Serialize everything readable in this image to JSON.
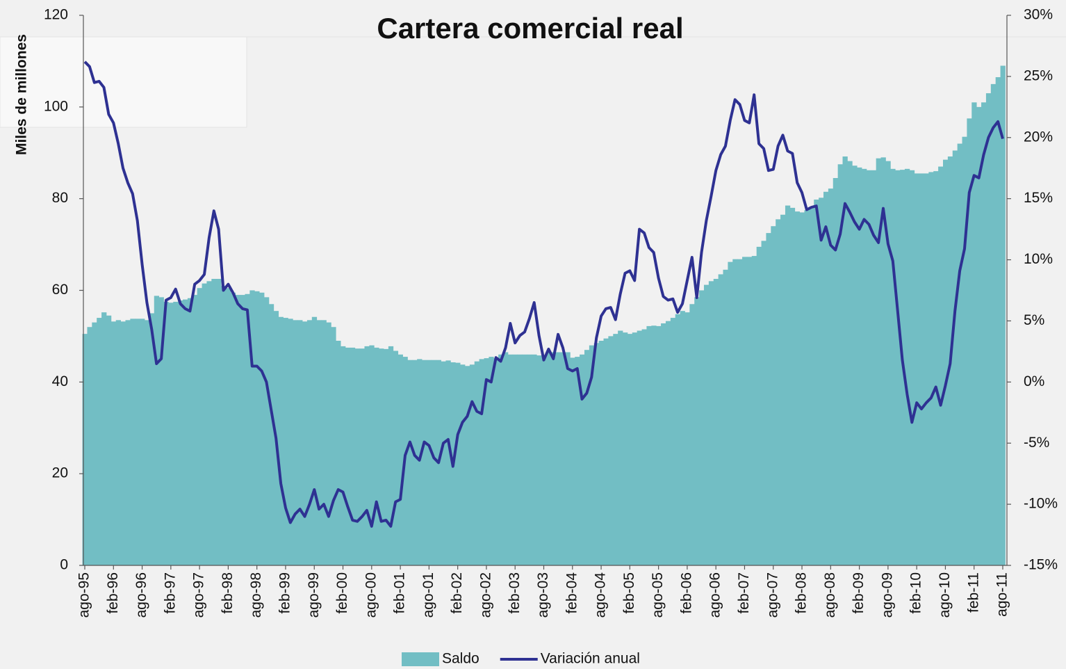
{
  "chart_data": {
    "type": "combo",
    "title": "Cartera comercial real",
    "y_label": "Miles de millones",
    "categories": [
      "ago-95",
      null,
      null,
      null,
      null,
      null,
      "feb-96",
      null,
      null,
      null,
      null,
      null,
      "ago-96",
      null,
      null,
      null,
      null,
      null,
      "feb-97",
      null,
      null,
      null,
      null,
      null,
      "ago-97",
      null,
      null,
      null,
      null,
      null,
      "feb-98",
      null,
      null,
      null,
      null,
      null,
      "ago-98",
      null,
      null,
      null,
      null,
      null,
      "feb-99",
      null,
      null,
      null,
      null,
      null,
      "ago-99",
      null,
      null,
      null,
      null,
      null,
      "feb-00",
      null,
      null,
      null,
      null,
      null,
      "ago-00",
      null,
      null,
      null,
      null,
      null,
      "feb-01",
      null,
      null,
      null,
      null,
      null,
      "ago-01",
      null,
      null,
      null,
      null,
      null,
      "feb-02",
      null,
      null,
      null,
      null,
      null,
      "ago-02",
      null,
      null,
      null,
      null,
      null,
      "feb-03",
      null,
      null,
      null,
      null,
      null,
      "ago-03",
      null,
      null,
      null,
      null,
      null,
      "feb-04",
      null,
      null,
      null,
      null,
      null,
      "ago-04",
      null,
      null,
      null,
      null,
      null,
      "feb-05",
      null,
      null,
      null,
      null,
      null,
      "ago-05",
      null,
      null,
      null,
      null,
      null,
      "feb-06",
      null,
      null,
      null,
      null,
      null,
      "ago-06",
      null,
      null,
      null,
      null,
      null,
      "feb-07",
      null,
      null,
      null,
      null,
      null,
      "ago-07",
      null,
      null,
      null,
      null,
      null,
      "feb-08",
      null,
      null,
      null,
      null,
      null,
      "ago-08",
      null,
      null,
      null,
      null,
      null,
      "feb-09",
      null,
      null,
      null,
      null,
      null,
      "ago-09",
      null,
      null,
      null,
      null,
      null,
      "feb-10",
      null,
      null,
      null,
      null,
      null,
      "ago-10",
      null,
      null,
      null,
      null,
      null,
      "feb-11",
      null,
      null,
      null,
      null,
      null,
      "ago-11"
    ],
    "series": [
      {
        "name": "Saldo",
        "type": "bar",
        "color": "#72bec4",
        "values": [
          50.5,
          52,
          53,
          54,
          55.2,
          54.5,
          53.2,
          53.5,
          53.2,
          53.5,
          53.8,
          53.8,
          53.8,
          53.5,
          55,
          58.8,
          58.5,
          57.5,
          57.3,
          57.5,
          57.8,
          58,
          58.3,
          59,
          60.5,
          61.5,
          62,
          62.5,
          62.5,
          61,
          60.5,
          59.5,
          59,
          59,
          59.2,
          60,
          59.8,
          59.5,
          58.5,
          57,
          55.5,
          54.2,
          54,
          53.8,
          53.5,
          53.5,
          53.2,
          53.5,
          54.2,
          53.5,
          53.5,
          53,
          52,
          49,
          47.8,
          47.5,
          47.5,
          47.3,
          47.3,
          47.8,
          48,
          47.5,
          47.3,
          47.2,
          47.8,
          46.8,
          46,
          45.5,
          44.8,
          44.8,
          45,
          44.8,
          44.8,
          44.8,
          44.8,
          44.5,
          44.7,
          44.3,
          44.2,
          43.8,
          43.5,
          43.8,
          44.5,
          45,
          45.2,
          45.5,
          45.2,
          46,
          46.5,
          46,
          46,
          46,
          46,
          46,
          46,
          45.8,
          45.5,
          46.5,
          46.5,
          46.5,
          46.5,
          46.5,
          45.3,
          45.5,
          46,
          47,
          48,
          48.5,
          49,
          49.5,
          50,
          50.5,
          51.2,
          50.8,
          50.5,
          50.8,
          51.2,
          51.5,
          52.2,
          52.3,
          52.2,
          52.8,
          53.3,
          54,
          54.8,
          55.5,
          55.2,
          57,
          58.5,
          60,
          61.2,
          62,
          62.5,
          63.5,
          64.5,
          66.2,
          66.8,
          66.8,
          67.3,
          67.3,
          67.5,
          69.5,
          70.8,
          72.5,
          74,
          75.5,
          76.5,
          78.5,
          78,
          77.2,
          77,
          77.5,
          78,
          79.8,
          80.2,
          81.5,
          82.2,
          84.5,
          87.5,
          89.2,
          88.2,
          87.2,
          86.8,
          86.5,
          86.2,
          86.2,
          88.8,
          89,
          88.2,
          86.5,
          86.2,
          86.3,
          86.5,
          86.2,
          85.5,
          85.5,
          85.5,
          85.8,
          86,
          87,
          88.5,
          89.2,
          90.5,
          92,
          93.5,
          97.5,
          101,
          100,
          101,
          103,
          105,
          106.5,
          109
        ]
      },
      {
        "name": "Variación anual",
        "type": "line",
        "axis": "y2",
        "color": "#2e3192",
        "values": [
          26.2,
          25.8,
          24.5,
          24.6,
          24.1,
          21.9,
          21.2,
          19.5,
          17.5,
          16.3,
          15.4,
          13.2,
          9.6,
          6.5,
          4.3,
          1.5,
          1.9,
          6.7,
          6.9,
          7.6,
          6.4,
          6,
          5.8,
          8,
          8.3,
          8.8,
          11.8,
          14,
          12.5,
          7.5,
          8,
          7.3,
          6.4,
          6,
          5.9,
          1.3,
          1.3,
          0.9,
          0,
          -2.3,
          -4.6,
          -8.3,
          -10.3,
          -11.5,
          -10.8,
          -10.4,
          -11,
          -10,
          -8.8,
          -10.4,
          -10,
          -11,
          -9.7,
          -8.8,
          -9,
          -10.2,
          -11.3,
          -11.4,
          -11,
          -10.5,
          -11.8,
          -9.8,
          -11.4,
          -11.3,
          -11.8,
          -9.8,
          -9.6,
          -6,
          -4.9,
          -6,
          -6.4,
          -4.9,
          -5.2,
          -6.2,
          -6.6,
          -5,
          -4.7,
          -6.9,
          -4.3,
          -3.3,
          -2.8,
          -1.6,
          -2.4,
          -2.6,
          0.2,
          0,
          2,
          1.7,
          2.8,
          4.8,
          3.2,
          3.8,
          4.1,
          5.2,
          6.5,
          3.8,
          1.8,
          2.7,
          1.9,
          3.9,
          2.8,
          1.1,
          0.9,
          1.1,
          -1.4,
          -0.9,
          0.4,
          3.6,
          5.4,
          6,
          6.1,
          5.1,
          7.2,
          8.9,
          9.1,
          8.3,
          12.5,
          12.2,
          11,
          10.6,
          8.5,
          7,
          6.7,
          6.8,
          5.7,
          6.4,
          8.3,
          10.2,
          6.9,
          10.6,
          13.2,
          15.2,
          17.3,
          18.6,
          19.3,
          21.4,
          23.1,
          22.7,
          21.4,
          21.2,
          23.5,
          19.5,
          19.1,
          17.3,
          17.4,
          19.3,
          20.2,
          18.9,
          18.7,
          16.3,
          15.5,
          14.1,
          14.3,
          14.4,
          11.6,
          12.7,
          11.2,
          10.8,
          12.1,
          14.6,
          13.9,
          13.1,
          12.5,
          13.3,
          12.9,
          12,
          11.4,
          14.2,
          11.3,
          9.9,
          5.9,
          1.8,
          -1,
          -3.3,
          -1.7,
          -2.2,
          -1.7,
          -1.3,
          -0.4,
          -1.9,
          -0.3,
          1.5,
          5.8,
          9.1,
          10.9,
          15.5,
          16.9,
          16.7,
          18.6,
          20,
          20.8,
          21.3,
          19.9
        ]
      }
    ],
    "ylim": [
      0,
      120
    ],
    "yticks": [
      0,
      20,
      40,
      60,
      80,
      100,
      120
    ],
    "y2lim": [
      -15,
      30
    ],
    "y2ticks": [
      {
        "value": -15,
        "label": "-15%"
      },
      {
        "value": -10,
        "label": "-10%"
      },
      {
        "value": -5,
        "label": "-5%"
      },
      {
        "value": 0,
        "label": "0%"
      },
      {
        "value": 5,
        "label": "5%"
      },
      {
        "value": 10,
        "label": "10%"
      },
      {
        "value": 15,
        "label": "15%"
      },
      {
        "value": 20,
        "label": "20%"
      },
      {
        "value": 25,
        "label": "25%"
      },
      {
        "value": 30,
        "label": "30%"
      }
    ],
    "legend": "bottom"
  }
}
